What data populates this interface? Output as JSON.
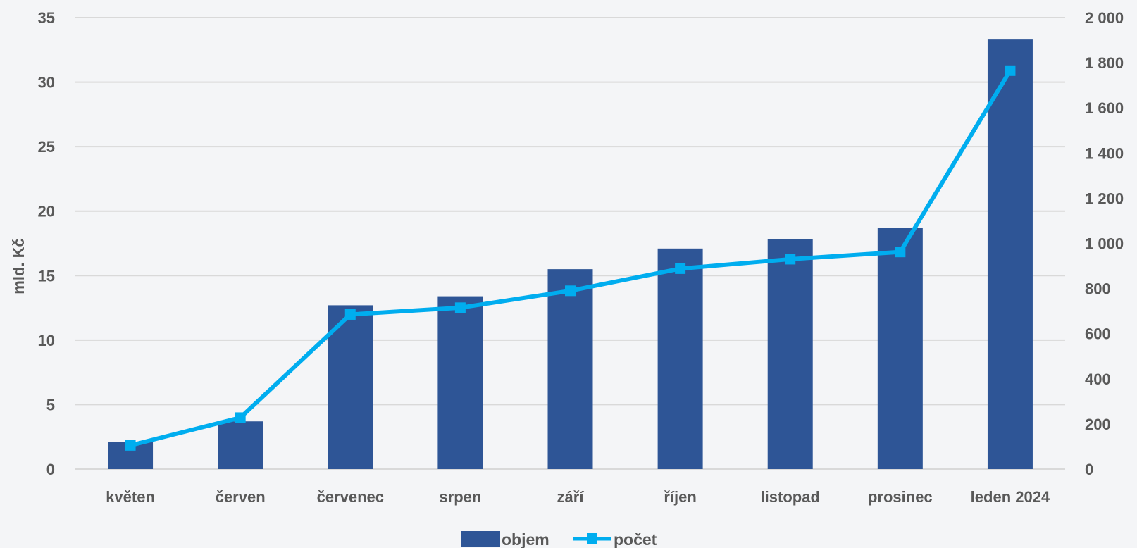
{
  "colors": {
    "bar": "#2e5596",
    "line": "#00adef",
    "grid": "#d9d9d9",
    "text": "#595959",
    "background": "#f4f5f7"
  },
  "chart_data": {
    "type": "bar",
    "categories": [
      "květen",
      "červen",
      "červenec",
      "srpen",
      "září",
      "říjen",
      "listopad",
      "prosinec",
      "leden 2024"
    ],
    "series": [
      {
        "name": "objem",
        "type": "bar",
        "axis": "left",
        "values": [
          2.1,
          3.7,
          12.7,
          13.4,
          15.5,
          17.1,
          17.8,
          18.7,
          33.3
        ]
      },
      {
        "name": "počet",
        "type": "line",
        "axis": "right",
        "marker": "square",
        "values": [
          105,
          228,
          685,
          715,
          790,
          888,
          930,
          962,
          1765
        ]
      }
    ],
    "ylabel": "mld. Kč",
    "ylim": [
      0,
      35
    ],
    "y_ticks": [
      "0",
      "5",
      "10",
      "15",
      "20",
      "25",
      "30",
      "35"
    ],
    "y2lim": [
      0,
      2000
    ],
    "y2_ticks": [
      "0",
      "200",
      "400",
      "600",
      "800",
      "1 000",
      "1 200",
      "1 400",
      "1 600",
      "1 800",
      "2 000"
    ],
    "grid": true,
    "legend_position": "bottom"
  }
}
